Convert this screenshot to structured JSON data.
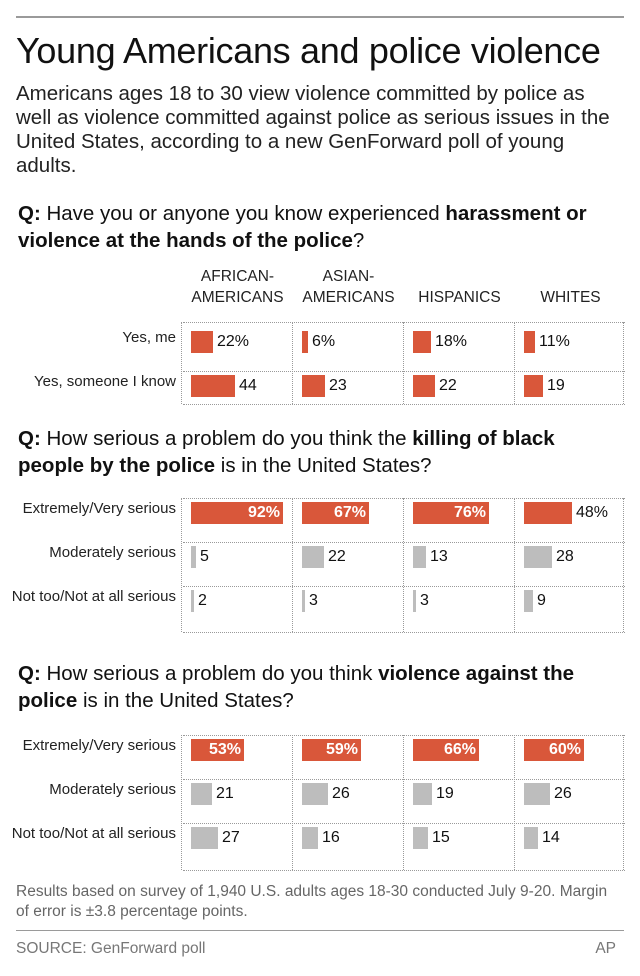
{
  "header": {
    "title": "Young Americans and police violence",
    "intro": "Americans ages 18 to 30 view violence committed by police as well as violence committed against police as serious issues in the United States, according to a new GenForward poll of young adults."
  },
  "colors": {
    "accent": "#d9573a",
    "gray": "#bdbdbd",
    "rule": "#9a9a9a"
  },
  "columns": [
    "AFRICAN-\nAMERICANS",
    "ASIAN-\nAMERICANS",
    "HISPANICS",
    "WHITES"
  ],
  "questions": [
    {
      "q_prefix": "Q:",
      "q_parts": [
        {
          "text": " Have you or anyone you know experienced ",
          "bold": false
        },
        {
          "text": "harassment or violence at the hands of the police",
          "bold": true
        },
        {
          "text": "?",
          "bold": false
        }
      ]
    },
    {
      "q_prefix": "Q:",
      "q_parts": [
        {
          "text": " How serious a problem do you think the ",
          "bold": false
        },
        {
          "text": "killing of black people by the police",
          "bold": true
        },
        {
          "text": " is in the United States?",
          "bold": false
        }
      ]
    },
    {
      "q_prefix": "Q:",
      "q_parts": [
        {
          "text": " How serious a problem do you think ",
          "bold": false
        },
        {
          "text": "violence against the police",
          "bold": true
        },
        {
          "text": " is in the United States?",
          "bold": false
        }
      ]
    }
  ],
  "chart_data": [
    {
      "type": "bar",
      "categories": [
        "AFRICAN-AMERICANS",
        "ASIAN-AMERICANS",
        "HISPANICS",
        "WHITES"
      ],
      "series": [
        {
          "name": "Yes, me",
          "values": [
            22,
            6,
            18,
            11
          ],
          "labels": [
            "22%",
            "6%",
            "18%",
            "11%"
          ],
          "color": "orange"
        },
        {
          "name": "Yes, someone I know",
          "values": [
            44,
            23,
            22,
            19
          ],
          "labels": [
            "44",
            "23",
            "22",
            "19"
          ],
          "color": "orange"
        }
      ]
    },
    {
      "type": "bar",
      "categories": [
        "AFRICAN-AMERICANS",
        "ASIAN-AMERICANS",
        "HISPANICS",
        "WHITES"
      ],
      "series": [
        {
          "name": "Extremely/Very serious",
          "values": [
            92,
            67,
            76,
            48
          ],
          "labels": [
            "92%",
            "67%",
            "76%",
            "48%"
          ],
          "color": "orange"
        },
        {
          "name": "Moderately serious",
          "values": [
            5,
            22,
            13,
            28
          ],
          "labels": [
            "5",
            "22",
            "13",
            "28"
          ],
          "color": "gray"
        },
        {
          "name": "Not too/Not at all serious",
          "values": [
            2,
            3,
            3,
            9
          ],
          "labels": [
            "2",
            "3",
            "3",
            "9"
          ],
          "color": "gray"
        }
      ]
    },
    {
      "type": "bar",
      "categories": [
        "AFRICAN-AMERICANS",
        "ASIAN-AMERICANS",
        "HISPANICS",
        "WHITES"
      ],
      "series": [
        {
          "name": "Extremely/Very serious",
          "values": [
            53,
            59,
            66,
            60
          ],
          "labels": [
            "53%",
            "59%",
            "66%",
            "60%"
          ],
          "color": "orange"
        },
        {
          "name": "Moderately serious",
          "values": [
            21,
            26,
            19,
            26
          ],
          "labels": [
            "21",
            "26",
            "19",
            "26"
          ],
          "color": "gray"
        },
        {
          "name": "Not too/Not at all serious",
          "values": [
            27,
            16,
            15,
            14
          ],
          "labels": [
            "27",
            "16",
            "15",
            "14"
          ],
          "color": "gray"
        }
      ]
    }
  ],
  "footer": {
    "note": "Results based on survey of 1,940 U.S. adults ages 18-30 conducted July 9-20. Margin of error is ±3.8 percentage points.",
    "source": "SOURCE: GenForward poll",
    "credit": "AP"
  }
}
